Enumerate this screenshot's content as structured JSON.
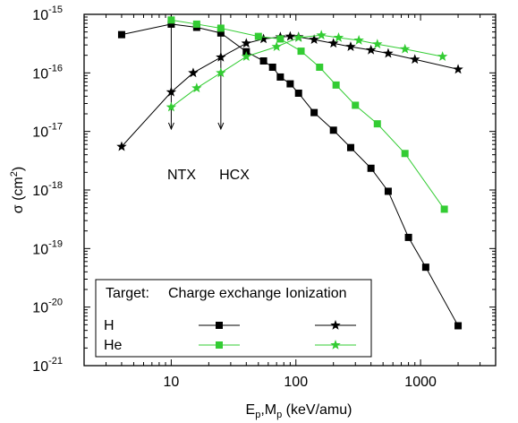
{
  "chart_data": {
    "type": "scatter",
    "xlabel_base": "E",
    "xlabel_sub1": "p",
    "xlabel_mid": ",M",
    "xlabel_sub2": "p",
    "xlabel_tail": " (keV/amu)",
    "ylabel_main": "σ (cm",
    "ylabel_sup": "2",
    "ylabel_tail": ")",
    "xscale": "log",
    "yscale": "log",
    "xlim": [
      2,
      4000
    ],
    "ylim": [
      1e-21,
      1e-15
    ],
    "x_ticks": [
      {
        "value": 10,
        "label": "10"
      },
      {
        "value": 100,
        "label": "100"
      },
      {
        "value": 1000,
        "label": "1000"
      }
    ],
    "y_ticks": [
      {
        "exp": -15,
        "label": "10",
        "sup": "-15"
      },
      {
        "exp": -16,
        "label": "10",
        "sup": "-16"
      },
      {
        "exp": -17,
        "label": "10",
        "sup": "-17"
      },
      {
        "exp": -18,
        "label": "10",
        "sup": "-18"
      },
      {
        "exp": -19,
        "label": "10",
        "sup": "-19"
      },
      {
        "exp": -20,
        "label": "10",
        "sup": "-20"
      },
      {
        "exp": -21,
        "label": "10",
        "sup": "-21"
      }
    ],
    "series": [
      {
        "target": "H",
        "process": "Charge exchange",
        "marker": "square",
        "color": "#000000",
        "x": [
          4,
          10,
          16,
          25,
          40,
          55,
          65,
          75,
          90,
          105,
          140,
          200,
          275,
          400,
          550,
          800,
          1100,
          2000
        ],
        "y": [
          4.5e-16,
          6.8e-16,
          6e-16,
          4.8e-16,
          2.3e-16,
          1.6e-16,
          1.25e-16,
          8.5e-17,
          6.5e-17,
          4.5e-17,
          2.1e-17,
          1.05e-17,
          5.3e-18,
          2.35e-18,
          9.5e-19,
          1.55e-19,
          4.8e-20,
          4.8e-21
        ]
      },
      {
        "target": "H",
        "process": "Ionization",
        "marker": "star",
        "color": "#000000",
        "x": [
          4,
          10,
          15,
          25,
          40,
          55,
          75,
          90,
          105,
          140,
          200,
          275,
          400,
          550,
          900,
          2000
        ],
        "y": [
          5.5e-18,
          4.7e-17,
          1e-16,
          1.85e-16,
          3.2e-16,
          3.8e-16,
          4.1e-16,
          4.2e-16,
          4.1e-16,
          3.7e-16,
          3.2e-16,
          2.8e-16,
          2.45e-16,
          2.15e-16,
          1.7e-16,
          1.15e-16
        ]
      },
      {
        "target": "He",
        "process": "Charge exchange",
        "marker": "square",
        "color": "#33cc33",
        "x": [
          10,
          16,
          25,
          50,
          75,
          110,
          155,
          210,
          300,
          450,
          750,
          1550
        ],
        "y": [
          8e-16,
          6.8e-16,
          5.8e-16,
          4.2e-16,
          3.8e-16,
          2.35e-16,
          1.25e-16,
          6.2e-17,
          2.8e-17,
          1.35e-17,
          4.2e-18,
          4.7e-19
        ]
      },
      {
        "target": "He",
        "process": "Ionization",
        "marker": "star",
        "color": "#33cc33",
        "x": [
          10,
          16,
          25,
          40,
          70,
          105,
          160,
          220,
          320,
          450,
          750,
          1500
        ],
        "y": [
          2.6e-17,
          5.5e-17,
          1e-16,
          1.9e-16,
          2.8e-16,
          4e-16,
          4.4e-16,
          4e-16,
          3.6e-16,
          3.1e-16,
          2.55e-16,
          1.9e-16
        ]
      }
    ],
    "arrows": [
      {
        "label": "NTX",
        "x": 10,
        "y_from": 1e-15,
        "y_to": 1.1e-17
      },
      {
        "label": "HCX",
        "x": 25,
        "y_from": 1e-15,
        "y_to": 1.1e-17
      }
    ],
    "legend": {
      "placement": "bottom-left",
      "header_target": "Target:",
      "header_cx": "Charge exchange",
      "header_ion": "Ionization",
      "rows": [
        {
          "label": "H",
          "color": "#000000"
        },
        {
          "label": "He",
          "color": "#33cc33"
        }
      ]
    }
  }
}
